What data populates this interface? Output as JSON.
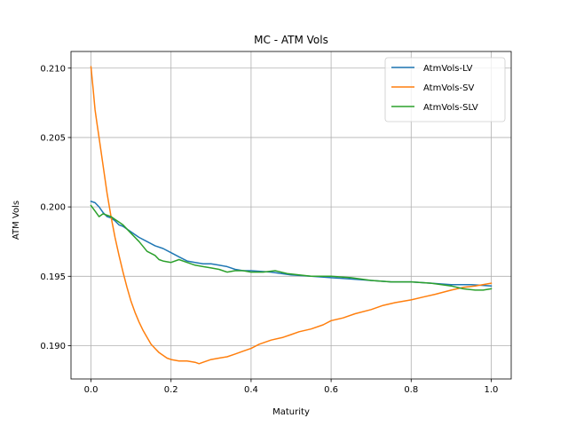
{
  "chart_data": {
    "type": "line",
    "title": "MC - ATM Vols",
    "xlabel": "Maturity",
    "ylabel": "ATM Vols",
    "xlim": [
      -0.05,
      1.05
    ],
    "ylim": [
      0.1876,
      0.2112
    ],
    "xticks": [
      0.0,
      0.2,
      0.4,
      0.6,
      0.8,
      1.0
    ],
    "xtick_labels": [
      "0.0",
      "0.2",
      "0.4",
      "0.6",
      "0.8",
      "1.0"
    ],
    "yticks": [
      0.19,
      0.195,
      0.2,
      0.205,
      0.21
    ],
    "ytick_labels": [
      "0.190",
      "0.195",
      "0.200",
      "0.205",
      "0.210"
    ],
    "grid": true,
    "legend_position": "top-right",
    "series": [
      {
        "name": "AtmVols-LV",
        "color": "#1f77b4",
        "x": [
          0.0,
          0.01,
          0.02,
          0.03,
          0.04,
          0.05,
          0.06,
          0.07,
          0.08,
          0.1,
          0.12,
          0.14,
          0.16,
          0.18,
          0.2,
          0.22,
          0.24,
          0.26,
          0.28,
          0.3,
          0.32,
          0.34,
          0.36,
          0.38,
          0.4,
          0.45,
          0.5,
          0.55,
          0.6,
          0.65,
          0.7,
          0.75,
          0.8,
          0.85,
          0.9,
          0.95,
          1.0
        ],
        "y": [
          0.2004,
          0.2003,
          0.2,
          0.1996,
          0.1993,
          0.1992,
          0.199,
          0.1987,
          0.1986,
          0.1982,
          0.1978,
          0.1975,
          0.1972,
          0.197,
          0.1967,
          0.1964,
          0.1961,
          0.196,
          0.1959,
          0.1959,
          0.1958,
          0.1957,
          0.1955,
          0.1954,
          0.1954,
          0.1953,
          0.1951,
          0.195,
          0.1949,
          0.1948,
          0.1947,
          0.1946,
          0.1946,
          0.1945,
          0.1944,
          0.1944,
          0.1943
        ]
      },
      {
        "name": "AtmVols-SV",
        "color": "#ff7f0e",
        "x": [
          0.0,
          0.005,
          0.01,
          0.015,
          0.02,
          0.03,
          0.04,
          0.05,
          0.06,
          0.07,
          0.08,
          0.09,
          0.1,
          0.11,
          0.12,
          0.13,
          0.14,
          0.15,
          0.16,
          0.17,
          0.18,
          0.19,
          0.2,
          0.22,
          0.24,
          0.26,
          0.27,
          0.28,
          0.3,
          0.32,
          0.34,
          0.36,
          0.38,
          0.4,
          0.42,
          0.45,
          0.48,
          0.5,
          0.52,
          0.55,
          0.58,
          0.6,
          0.63,
          0.66,
          0.7,
          0.73,
          0.76,
          0.8,
          0.83,
          0.86,
          0.9,
          0.93,
          0.96,
          1.0
        ],
        "y": [
          0.2101,
          0.2086,
          0.207,
          0.206,
          0.205,
          0.203,
          0.201,
          0.1993,
          0.1978,
          0.1965,
          0.1953,
          0.1942,
          0.1932,
          0.1924,
          0.1917,
          0.1911,
          0.1906,
          0.1901,
          0.1898,
          0.1895,
          0.1893,
          0.1891,
          0.189,
          0.1889,
          0.1889,
          0.1888,
          0.1887,
          0.1888,
          0.189,
          0.1891,
          0.1892,
          0.1894,
          0.1896,
          0.1898,
          0.1901,
          0.1904,
          0.1906,
          0.1908,
          0.191,
          0.1912,
          0.1915,
          0.1918,
          0.192,
          0.1923,
          0.1926,
          0.1929,
          0.1931,
          0.1933,
          0.1935,
          0.1937,
          0.194,
          0.1942,
          0.1943,
          0.1945
        ]
      },
      {
        "name": "AtmVols-SLV",
        "color": "#2ca02c",
        "x": [
          0.0,
          0.01,
          0.02,
          0.03,
          0.04,
          0.05,
          0.06,
          0.07,
          0.08,
          0.1,
          0.12,
          0.14,
          0.16,
          0.17,
          0.18,
          0.2,
          0.22,
          0.24,
          0.26,
          0.28,
          0.3,
          0.32,
          0.34,
          0.36,
          0.38,
          0.4,
          0.43,
          0.46,
          0.49,
          0.52,
          0.55,
          0.6,
          0.65,
          0.7,
          0.75,
          0.8,
          0.85,
          0.9,
          0.93,
          0.96,
          0.98,
          1.0
        ],
        "y": [
          0.2001,
          0.1997,
          0.1993,
          0.1995,
          0.1994,
          0.1993,
          0.1991,
          0.1989,
          0.1987,
          0.1981,
          0.1975,
          0.1968,
          0.1965,
          0.1962,
          0.1961,
          0.196,
          0.1962,
          0.196,
          0.1958,
          0.1957,
          0.1956,
          0.1955,
          0.1953,
          0.1954,
          0.1954,
          0.1953,
          0.1953,
          0.1954,
          0.1952,
          0.1951,
          0.195,
          0.195,
          0.1949,
          0.1947,
          0.1946,
          0.1946,
          0.1945,
          0.1943,
          0.1941,
          0.194,
          0.194,
          0.1941
        ]
      }
    ]
  }
}
